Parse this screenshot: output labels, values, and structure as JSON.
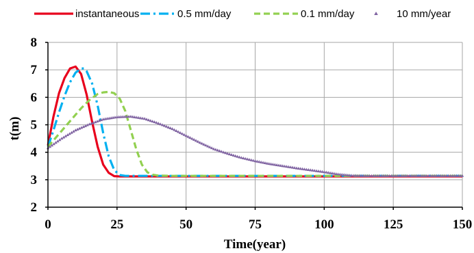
{
  "chart_data": {
    "type": "line",
    "xlabel": "Time(year)",
    "ylabel": "t(m)",
    "xlim": [
      0,
      150
    ],
    "ylim": [
      2,
      8
    ],
    "xticks": [
      0,
      25,
      50,
      75,
      100,
      125,
      150
    ],
    "yticks": [
      2,
      3,
      4,
      5,
      6,
      7,
      8
    ],
    "grid": true,
    "legend_position": "top",
    "series": [
      {
        "name": "instantaneous",
        "color": "#e8001c",
        "style": "solid",
        "x": [
          0,
          2,
          4,
          6,
          8,
          10,
          12,
          14,
          16,
          18,
          20,
          22,
          24,
          26,
          28,
          30,
          40,
          50,
          60,
          70,
          80,
          90,
          100,
          110,
          120,
          130,
          140,
          150
        ],
        "y": [
          4.25,
          5.3,
          6.15,
          6.7,
          7.05,
          7.12,
          6.85,
          6.1,
          5.1,
          4.2,
          3.55,
          3.25,
          3.13,
          3.12,
          3.12,
          3.12,
          3.12,
          3.12,
          3.12,
          3.12,
          3.12,
          3.12,
          3.12,
          3.12,
          3.12,
          3.12,
          3.12,
          3.12
        ]
      },
      {
        "name": "0.5 mm/day",
        "color": "#00b0f0",
        "style": "dashdot",
        "x": [
          0,
          2,
          4,
          6,
          8,
          10,
          12,
          13,
          14,
          16,
          18,
          20,
          22,
          24,
          26,
          28,
          30,
          40,
          50,
          60,
          70,
          80,
          90,
          100,
          110,
          120,
          130,
          140,
          150
        ],
        "y": [
          4.2,
          4.8,
          5.45,
          6.05,
          6.55,
          6.9,
          7.05,
          7.05,
          6.95,
          6.5,
          5.7,
          4.7,
          3.85,
          3.35,
          3.17,
          3.14,
          3.14,
          3.14,
          3.14,
          3.14,
          3.14,
          3.14,
          3.14,
          3.14,
          3.14,
          3.14,
          3.14,
          3.14,
          3.14
        ]
      },
      {
        "name": "0.1 mm/day",
        "color": "#92d050",
        "style": "dashed",
        "x": [
          0,
          3,
          6,
          9,
          12,
          15,
          18,
          20,
          22,
          24,
          26,
          28,
          30,
          32,
          34,
          36,
          38,
          40,
          45,
          50,
          60,
          70,
          80,
          90,
          100,
          110,
          120,
          130,
          140,
          150
        ],
        "y": [
          4.2,
          4.55,
          4.9,
          5.25,
          5.6,
          5.9,
          6.12,
          6.18,
          6.2,
          6.15,
          5.95,
          5.5,
          4.8,
          4.1,
          3.55,
          3.27,
          3.18,
          3.15,
          3.14,
          3.14,
          3.14,
          3.14,
          3.14,
          3.14,
          3.14,
          3.14,
          3.14,
          3.14,
          3.14,
          3.14
        ]
      },
      {
        "name": "10 mm/year",
        "color": "#8064a2",
        "style": "marker-triangle",
        "x": [
          0,
          5,
          10,
          15,
          20,
          25,
          30,
          35,
          40,
          45,
          50,
          55,
          60,
          65,
          70,
          75,
          80,
          85,
          90,
          95,
          100,
          105,
          110,
          115,
          120,
          125,
          130,
          135,
          140,
          145,
          150
        ],
        "y": [
          4.15,
          4.5,
          4.8,
          5.02,
          5.2,
          5.28,
          5.3,
          5.22,
          5.05,
          4.85,
          4.6,
          4.35,
          4.12,
          3.95,
          3.8,
          3.68,
          3.58,
          3.5,
          3.42,
          3.35,
          3.28,
          3.2,
          3.15,
          3.14,
          3.14,
          3.14,
          3.14,
          3.14,
          3.14,
          3.14,
          3.14
        ]
      }
    ]
  }
}
